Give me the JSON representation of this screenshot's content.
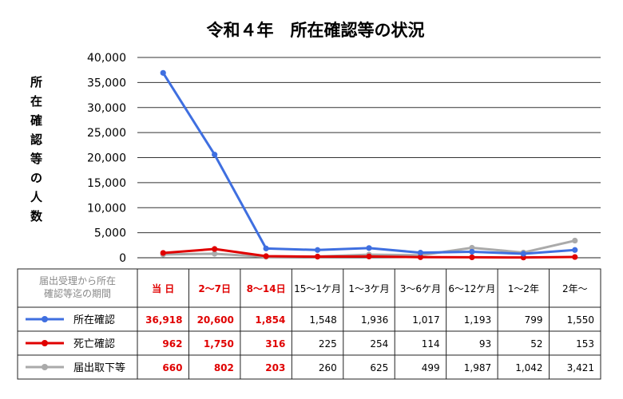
{
  "chart_data": {
    "type": "line",
    "title": "令和４年　所在確認等の状況",
    "ylabel": "所在確認等の人数",
    "ylim": [
      0,
      40000
    ],
    "yticks": [
      "0",
      "5,000",
      "10,000",
      "15,000",
      "20,000",
      "25,000",
      "30,000",
      "35,000",
      "40,000"
    ],
    "categories": [
      "当 日",
      "2〜7日",
      "8〜14日",
      "15〜1ケ月",
      "1〜3ケ月",
      "3〜6ケ月",
      "6〜12ケ月",
      "1〜2年",
      "2年〜"
    ],
    "red_categories": [
      0,
      1,
      2
    ],
    "table_header_label": [
      "届出受理から所在",
      "確認等迄の期間"
    ],
    "grid": true,
    "legend": "table-left",
    "series": [
      {
        "name": "所在確認",
        "color": "#3f6fe0",
        "values": [
          36918,
          20600,
          1854,
          1548,
          1936,
          1017,
          1193,
          799,
          1550
        ],
        "display": [
          "36,918",
          "20,600",
          "1,854",
          "1,548",
          "1,936",
          "1,017",
          "1,193",
          "799",
          "1,550"
        ]
      },
      {
        "name": "死亡確認",
        "color": "#e00000",
        "values": [
          962,
          1750,
          316,
          225,
          254,
          114,
          93,
          52,
          153
        ],
        "display": [
          "962",
          "1,750",
          "316",
          "225",
          "254",
          "114",
          "93",
          "52",
          "153"
        ]
      },
      {
        "name": "届出取下等",
        "color": "#aaaaaa",
        "values": [
          660,
          802,
          203,
          260,
          625,
          499,
          1987,
          1042,
          3421
        ],
        "display": [
          "660",
          "802",
          "203",
          "260",
          "625",
          "499",
          "1,987",
          "1,042",
          "3,421"
        ]
      }
    ]
  }
}
